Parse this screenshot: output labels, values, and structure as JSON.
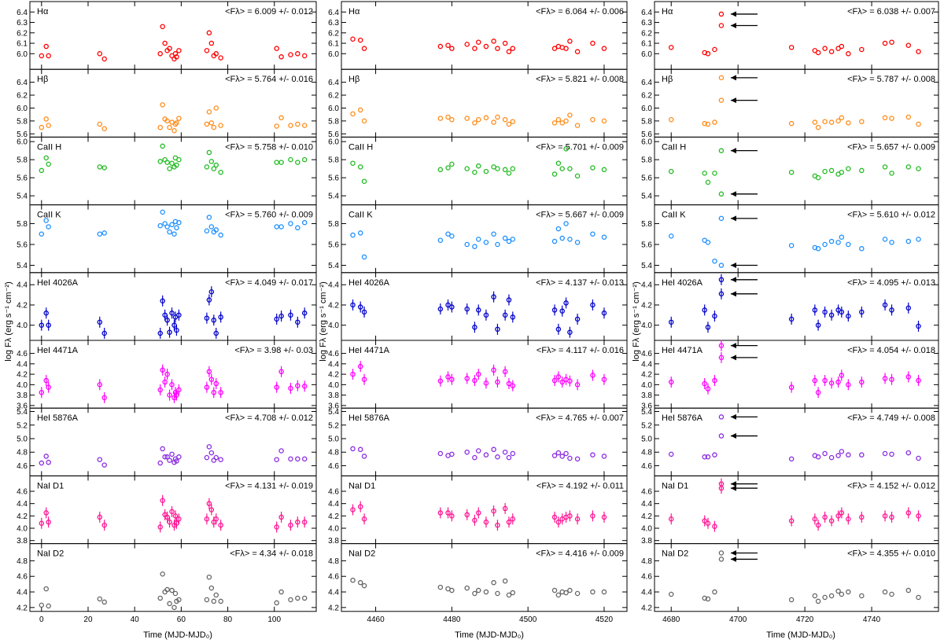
{
  "figure": {
    "y_axis_label": "log Fλ (erg s⁻¹ cm⁻²)",
    "x_axis_label": "Time (MJD-MJD₀)",
    "arrow_color": "#000000"
  },
  "chart_data": {
    "type": "scatter",
    "lines": [
      {
        "name": "Hα",
        "color": "#ff0000",
        "ylim": [
          5.85,
          6.5
        ],
        "yticks": [
          6.0,
          6.1,
          6.2,
          6.3,
          6.4,
          6.5
        ]
      },
      {
        "name": "Hβ",
        "color": "#ff8c1a",
        "ylim": [
          5.55,
          6.6
        ],
        "yticks": [
          5.6,
          5.8,
          6.0,
          6.2,
          6.4
        ]
      },
      {
        "name": "CaII H",
        "color": "#22bb22",
        "ylim": [
          5.3,
          6.05
        ],
        "yticks": [
          5.4,
          5.6,
          5.8,
          6.0
        ]
      },
      {
        "name": "CaII K",
        "color": "#1e90ff",
        "ylim": [
          5.33,
          5.98
        ],
        "yticks": [
          5.4,
          5.6,
          5.8
        ]
      },
      {
        "name": "HeI 4026A",
        "color": "#0000cc",
        "ylim": [
          3.85,
          4.52
        ],
        "yticks": [
          4.0,
          4.2,
          4.4
        ]
      },
      {
        "name": "HeI 4471A",
        "color": "#ff00ff",
        "ylim": [
          3.55,
          4.85
        ],
        "yticks": [
          3.6,
          3.8,
          4.0,
          4.2,
          4.4,
          4.6,
          4.8
        ]
      },
      {
        "name": "HeI 5876A",
        "color": "#8a2be2",
        "ylim": [
          4.45,
          5.45
        ],
        "yticks": [
          4.6,
          4.8,
          5.0,
          5.2,
          5.4
        ]
      },
      {
        "name": "NaI D1",
        "color": "#ff1493",
        "ylim": [
          3.75,
          4.85
        ],
        "yticks": [
          3.8,
          4.0,
          4.2,
          4.4,
          4.6,
          4.8
        ]
      },
      {
        "name": "NaI D2",
        "color": "#666666",
        "ylim": [
          4.15,
          5.02
        ],
        "yticks": [
          4.2,
          4.4,
          4.6,
          4.8,
          5.0
        ]
      }
    ],
    "columns": [
      {
        "xlim": [
          -5,
          118
        ],
        "xticks": [
          0,
          20,
          40,
          60,
          80,
          100
        ],
        "means": [
          "<Fλ> = 6.009 +/- 0.012",
          "<Fλ> = 5.764 +/- 0.016",
          "<Fλ> = 5.758 +/- 0.010",
          "<Fλ> = 5.760 +/- 0.009",
          "<Fλ> = 4.049 +/- 0.017",
          "<Fλ> = 3.98 +/- 0.03",
          "<Fλ> = 4.708 +/- 0.012",
          "<Fλ> = 4.131 +/- 0.019",
          "<Fλ> = 4.34 +/- 0.018"
        ],
        "x": [
          0,
          2,
          3,
          25,
          27,
          51,
          52,
          53,
          54,
          55,
          56,
          57,
          57.5,
          58,
          59,
          71,
          72,
          73,
          74,
          75,
          77,
          101,
          103,
          107,
          110,
          113
        ],
        "y": [
          [
            5.98,
            6.07,
            5.98,
            6.0,
            5.95,
            6.0,
            6.26,
            6.1,
            6.03,
            6.05,
            5.98,
            5.95,
            6.0,
            5.97,
            6.03,
            6.03,
            6.2,
            6.1,
            5.98,
            6.0,
            5.96,
            6.05,
            5.97,
            5.99,
            6.0,
            5.98
          ],
          [
            5.7,
            5.83,
            5.73,
            5.75,
            5.68,
            5.7,
            6.05,
            5.83,
            5.8,
            5.7,
            5.78,
            5.65,
            5.75,
            5.77,
            5.84,
            5.75,
            5.94,
            5.77,
            5.7,
            6.0,
            5.73,
            5.72,
            5.85,
            5.73,
            5.75,
            5.73
          ],
          [
            5.68,
            5.82,
            5.75,
            5.72,
            5.71,
            5.78,
            5.95,
            5.8,
            5.77,
            5.7,
            5.76,
            5.72,
            5.82,
            5.74,
            5.8,
            5.72,
            5.88,
            5.78,
            5.7,
            5.74,
            5.66,
            5.77,
            5.77,
            5.8,
            5.77,
            5.8
          ],
          [
            5.7,
            5.83,
            5.77,
            5.7,
            5.71,
            5.78,
            5.91,
            5.8,
            5.77,
            5.72,
            5.79,
            5.7,
            5.82,
            5.76,
            5.81,
            5.73,
            5.86,
            5.77,
            5.72,
            5.74,
            5.69,
            5.77,
            5.77,
            5.8,
            5.76,
            5.81
          ],
          [
            4.0,
            4.12,
            4.0,
            4.03,
            3.92,
            3.92,
            4.24,
            4.1,
            4.05,
            3.93,
            4.12,
            4.0,
            4.08,
            3.95,
            4.1,
            4.07,
            4.25,
            4.33,
            4.05,
            3.92,
            4.08,
            4.06,
            4.09,
            4.1,
            4.03,
            4.12
          ],
          [
            3.85,
            4.08,
            3.95,
            4.0,
            3.75,
            3.9,
            4.28,
            4.05,
            4.2,
            3.8,
            4.0,
            3.75,
            3.85,
            3.8,
            3.9,
            3.95,
            4.25,
            4.1,
            3.85,
            4.02,
            3.85,
            3.95,
            4.25,
            3.93,
            3.98,
            3.97
          ],
          [
            4.64,
            4.74,
            4.65,
            4.69,
            4.61,
            4.64,
            4.85,
            4.73,
            4.73,
            4.68,
            4.77,
            4.65,
            4.7,
            4.67,
            4.73,
            4.72,
            4.88,
            4.79,
            4.68,
            4.72,
            4.69,
            4.69,
            4.82,
            4.7,
            4.7,
            4.7
          ],
          [
            4.08,
            4.25,
            4.1,
            4.18,
            4.05,
            4.02,
            4.45,
            4.22,
            4.18,
            4.1,
            4.27,
            4.05,
            4.2,
            4.08,
            4.15,
            4.15,
            4.4,
            4.3,
            4.1,
            4.15,
            4.05,
            4.02,
            4.18,
            4.05,
            4.1,
            4.1
          ],
          [
            4.23,
            4.44,
            4.22,
            4.31,
            4.27,
            4.32,
            4.63,
            4.4,
            4.43,
            4.25,
            4.42,
            4.2,
            4.38,
            4.28,
            4.3,
            4.3,
            4.59,
            4.45,
            4.28,
            4.36,
            4.28,
            4.26,
            4.4,
            4.3,
            4.32,
            4.32
          ]
        ]
      },
      {
        "xlim": [
          4451,
          4526
        ],
        "xticks": [
          4460,
          4480,
          4500,
          4520
        ],
        "means": [
          "<Fλ> = 6.064 +/- 0.006",
          "<Fλ> = 5.821 +/- 0.008",
          "<Fλ> = 5.701 +/- 0.009",
          "<Fλ> = 5.667 +/- 0.009",
          "<Fλ> = 4.137 +/- 0.013",
          "<Fλ> = 4.117 +/- 0.016",
          "<Fλ> = 4.765 +/- 0.007",
          "<Fλ> = 4.192 +/- 0.011",
          "<Fλ> = 4.416 +/- 0.009"
        ],
        "x": [
          4454,
          4456,
          4457,
          4477,
          4479,
          4480,
          4484,
          4486,
          4487,
          4489,
          4491,
          4492,
          4494,
          4495,
          4496,
          4507,
          4508,
          4509,
          4510,
          4511,
          4513,
          4517,
          4520
        ],
        "y": [
          [
            6.14,
            6.13,
            6.05,
            6.07,
            6.08,
            6.05,
            6.09,
            6.05,
            6.11,
            6.07,
            6.12,
            6.05,
            6.1,
            6.02,
            6.05,
            6.05,
            6.07,
            6.06,
            6.05,
            6.12,
            6.02,
            6.1,
            6.05
          ],
          [
            5.91,
            5.97,
            5.8,
            5.84,
            5.86,
            5.82,
            5.84,
            5.77,
            5.82,
            5.85,
            5.78,
            5.86,
            5.82,
            5.75,
            5.79,
            5.77,
            5.82,
            5.77,
            5.8,
            5.89,
            5.73,
            5.82,
            5.8
          ],
          [
            5.76,
            5.72,
            5.56,
            5.69,
            5.71,
            5.75,
            5.7,
            5.66,
            5.73,
            5.67,
            5.72,
            5.7,
            5.69,
            5.65,
            5.7,
            5.64,
            5.76,
            5.7,
            5.92,
            5.7,
            5.62,
            5.71,
            5.69
          ],
          [
            5.69,
            5.71,
            5.48,
            5.64,
            5.7,
            5.68,
            5.6,
            5.58,
            5.65,
            5.62,
            5.7,
            5.6,
            5.66,
            5.63,
            5.65,
            5.63,
            5.75,
            5.66,
            5.8,
            5.65,
            5.62,
            5.7,
            5.67
          ],
          [
            4.2,
            4.18,
            4.13,
            4.16,
            4.2,
            4.18,
            4.16,
            3.98,
            4.15,
            4.1,
            4.28,
            3.96,
            4.1,
            4.25,
            4.08,
            4.15,
            3.96,
            4.14,
            4.22,
            3.93,
            4.06,
            4.2,
            4.12
          ],
          [
            4.2,
            4.35,
            4.1,
            4.07,
            4.15,
            4.1,
            4.12,
            4.08,
            4.2,
            4.03,
            4.28,
            4.05,
            4.25,
            4.02,
            3.98,
            4.08,
            4.15,
            4.05,
            4.1,
            4.07,
            4.0,
            4.18,
            4.1
          ],
          [
            4.85,
            4.84,
            4.74,
            4.78,
            4.75,
            4.77,
            4.8,
            4.72,
            4.82,
            4.76,
            4.84,
            4.73,
            4.8,
            4.72,
            4.78,
            4.75,
            4.79,
            4.74,
            4.78,
            4.71,
            4.7,
            4.76,
            4.74
          ],
          [
            4.3,
            4.35,
            4.15,
            4.25,
            4.25,
            4.2,
            4.22,
            4.13,
            4.25,
            4.1,
            4.28,
            4.05,
            4.32,
            4.1,
            4.15,
            4.18,
            4.1,
            4.15,
            4.18,
            4.2,
            4.15,
            4.2,
            4.18
          ],
          [
            4.55,
            4.52,
            4.48,
            4.46,
            4.44,
            4.42,
            4.45,
            4.38,
            4.42,
            4.4,
            4.52,
            4.38,
            4.54,
            4.36,
            4.39,
            4.42,
            4.36,
            4.4,
            4.39,
            4.42,
            4.38,
            4.4,
            4.4
          ]
        ]
      },
      {
        "xlim": [
          4675,
          4760
        ],
        "xticks": [
          4680,
          4700,
          4720,
          4740
        ],
        "means": [
          "<Fλ> = 6.038 +/- 0.007",
          "<Fλ> = 5.787 +/- 0.008",
          "<Fλ> = 5.657 +/- 0.009",
          "<Fλ> = 5.610 +/- 0.012",
          "<Fλ> = 4.095 +/- 0.013",
          "<Fλ> = 4.054 +/- 0.018",
          "<Fλ> = 4.749 +/- 0.008",
          "<Fλ> = 4.152 +/- 0.012",
          "<Fλ> = 4.355 +/- 0.010"
        ],
        "x": [
          4680,
          4690,
          4691,
          4693,
          4695,
          4695,
          4716,
          4723,
          4724,
          4726,
          4728,
          4730,
          4731,
          4733,
          4737,
          4744,
          4746,
          4751,
          4754
        ],
        "y": [
          [
            6.06,
            6.01,
            6.0,
            6.04,
            6.38,
            6.27,
            6.06,
            6.03,
            6.01,
            6.05,
            6.02,
            6.05,
            6.07,
            6.0,
            6.04,
            6.1,
            6.11,
            6.08,
            6.02
          ],
          [
            5.82,
            5.76,
            5.75,
            5.78,
            6.47,
            6.12,
            5.76,
            5.78,
            5.7,
            5.79,
            5.78,
            5.8,
            5.85,
            5.77,
            5.79,
            5.85,
            5.84,
            5.86,
            5.75
          ],
          [
            5.67,
            5.65,
            5.55,
            5.65,
            5.42,
            5.9,
            5.66,
            5.62,
            5.6,
            5.67,
            5.68,
            5.64,
            5.66,
            5.7,
            5.68,
            5.72,
            5.65,
            5.72,
            5.7
          ],
          [
            5.68,
            5.64,
            5.62,
            5.44,
            5.4,
            5.85,
            5.59,
            5.57,
            5.56,
            5.6,
            5.63,
            5.62,
            5.67,
            5.6,
            5.56,
            5.65,
            5.62,
            5.63,
            5.65
          ],
          [
            4.03,
            4.15,
            3.98,
            4.09,
            4.31,
            4.45,
            4.06,
            4.15,
            4.0,
            4.13,
            4.1,
            4.15,
            4.13,
            4.09,
            4.13,
            4.2,
            4.15,
            4.17,
            3.99
          ],
          [
            4.05,
            4.02,
            3.92,
            4.08,
            4.52,
            4.75,
            3.95,
            4.08,
            3.85,
            4.08,
            4.03,
            4.05,
            4.18,
            4.0,
            4.05,
            4.12,
            4.1,
            4.15,
            4.08
          ],
          [
            4.77,
            4.73,
            4.73,
            4.76,
            5.32,
            5.04,
            4.7,
            4.75,
            4.73,
            4.78,
            4.72,
            4.75,
            4.81,
            4.76,
            4.76,
            4.78,
            4.77,
            4.79,
            4.71
          ],
          [
            4.15,
            4.12,
            4.08,
            4.03,
            4.72,
            4.65,
            4.12,
            4.15,
            4.05,
            4.18,
            4.12,
            4.2,
            4.25,
            4.15,
            4.18,
            4.2,
            4.18,
            4.25,
            4.2
          ],
          [
            4.37,
            4.32,
            4.31,
            4.4,
            4.82,
            4.9,
            4.3,
            4.35,
            4.28,
            4.33,
            4.35,
            4.41,
            4.37,
            4.4,
            4.35,
            4.4,
            4.37,
            4.42,
            4.33
          ],
          null
        ],
        "yerr_note": null
      }
    ]
  }
}
